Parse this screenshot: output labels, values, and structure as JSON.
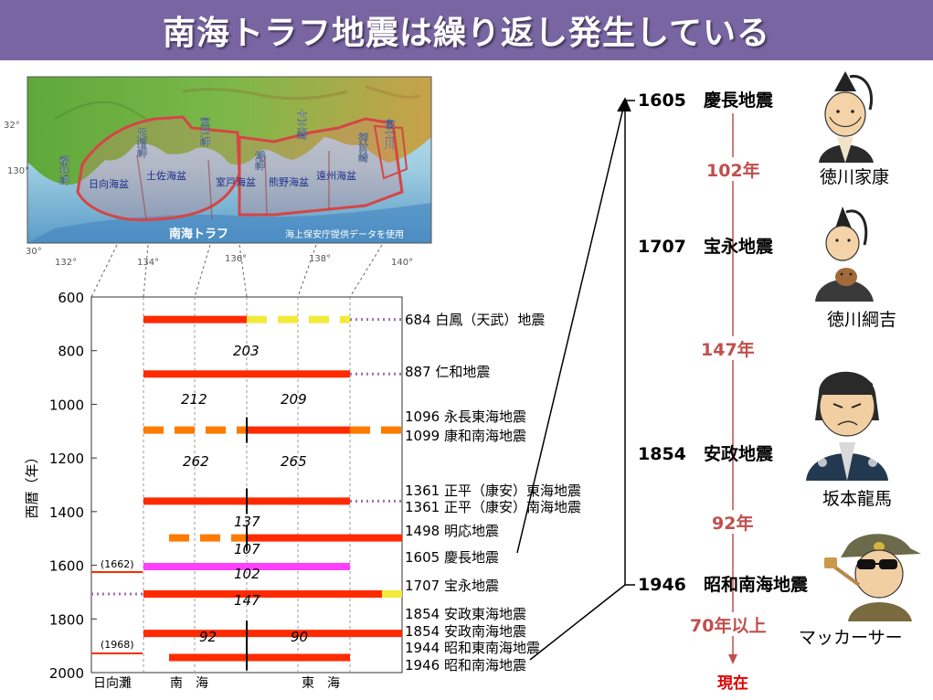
{
  "title": "南海トラフ地震は繰り返し発生している",
  "map": {
    "capes": [
      "都井岬",
      "足摺岬",
      "室戸岬",
      "潮岬",
      "大王崎",
      "御前崎",
      "富士川"
    ],
    "basins": [
      "日向海盆",
      "土佐海盆",
      "室戸海盆",
      "熊野海盆",
      "遠州海盆"
    ],
    "trough_label": "南海トラフ",
    "credit": "海上保安庁提供データを使用",
    "longitude_labels": [
      "130°",
      "132°",
      "134°",
      "136°",
      "138°",
      "140°"
    ],
    "latitude_labels": [
      "32°",
      "30°"
    ]
  },
  "chart_data": {
    "type": "timeline",
    "ylabel": "西暦（年）",
    "ylim": [
      600,
      2000
    ],
    "yticks": [
      600,
      800,
      1000,
      1200,
      1400,
      1600,
      1800,
      2000
    ],
    "xregions": [
      "日向灘",
      "南　海",
      "東　海"
    ],
    "events": [
      {
        "year": 684,
        "label": "684 白鳳（天武）地震"
      },
      {
        "year": 887,
        "label": "887 仁和地震"
      },
      {
        "year": 1096,
        "label": "1096 永長東海地震"
      },
      {
        "year": 1099,
        "label": "1099 康和南海地震"
      },
      {
        "year": 1361,
        "label": "1361 正平（康安）東海地震"
      },
      {
        "year": 1361,
        "label": "1361 正平（康安）南海地震"
      },
      {
        "year": 1498,
        "label": "1498 明応地震"
      },
      {
        "year": 1605,
        "label": "1605 慶長地震"
      },
      {
        "year": 1707,
        "label": "1707 宝永地震"
      },
      {
        "year": 1854,
        "label": "1854 安政東海地震"
      },
      {
        "year": 1854,
        "label": "1854 安政南海地震"
      },
      {
        "year": 1944,
        "label": "1944 昭和東南海地震"
      },
      {
        "year": 1946,
        "label": "1946 昭和南海地震"
      }
    ],
    "intervals": [
      "203",
      "212",
      "209",
      "262",
      "265",
      "137",
      "107",
      "102",
      "147",
      "92",
      "90"
    ],
    "hyuga_events": [
      "(1662)",
      "(1968)"
    ]
  },
  "timeline": {
    "events": [
      {
        "year": "1605",
        "name": "慶長地震",
        "person": "徳川家康"
      },
      {
        "year": "1707",
        "name": "宝永地震",
        "person": "徳川綱吉"
      },
      {
        "year": "1854",
        "name": "安政地震",
        "person": "坂本龍馬"
      },
      {
        "year": "1946",
        "name": "昭和南海地震",
        "person": "マッカーサー"
      }
    ],
    "gaps": [
      "102年",
      "147年",
      "92年",
      "70年以上"
    ],
    "now": "現在"
  },
  "colors": {
    "banner": "#7a65a3",
    "rupture_red": "#ff2a00",
    "rupture_orange": "#ff7a00",
    "rupture_yellow": "#f2ea3a",
    "rupture_magenta": "#ff40ff",
    "dotted_purple": "#9e6fb0",
    "gap_red": "#c0504d",
    "now_red": "#e00000"
  }
}
